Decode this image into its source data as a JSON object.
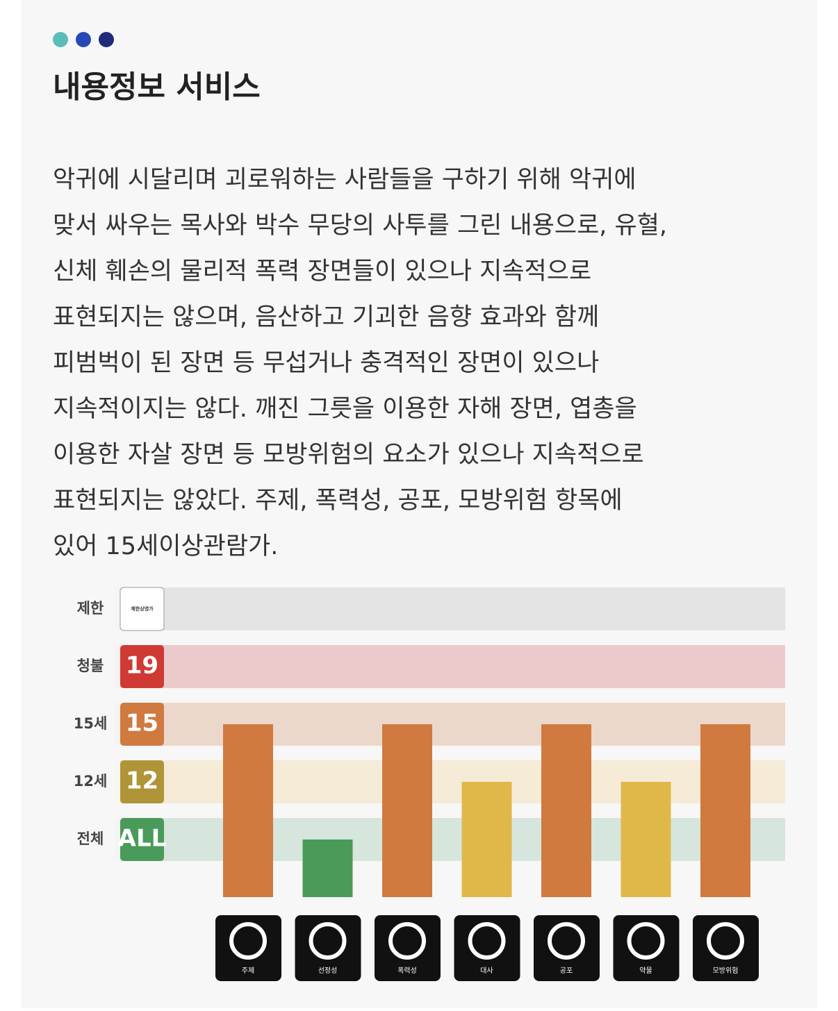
{
  "header": {
    "title": "내용정보 서비스"
  },
  "body": {
    "lines": [
      "악귀에 시달리며 괴로워하는 사람들을 구하기 위해 악귀에",
      "맞서 싸우는 목사와 박수 무당의 사투를 그린 내용으로, 유혈,",
      "신체 훼손의 물리적 폭력 장면들이 있으나 지속적으로",
      "표현되지는 않으며, 음산하고 기괴한 음향 효과와 함께",
      "피범벅이 된 장면 등 무섭거나 충격적인 장면이 있으나",
      "지속적이지는 않다. 깨진 그릇을 이용한 자해 장면, 엽총을",
      "이용한 자살 장면 등 모방위험의 요소가 있으나 지속적으로",
      "표현되지는 않았다. 주제, 폭력성, 공포, 모방위험 항목에",
      "있어 15세이상관람가."
    ]
  },
  "chart_data": {
    "type": "bar",
    "categories": [
      "주제",
      "선정성",
      "폭력성",
      "대사",
      "공포",
      "약물",
      "모방위험"
    ],
    "values": [
      3,
      1,
      3,
      2,
      3,
      2,
      3
    ],
    "colors": [
      "#d07a40",
      "#4a9a5a",
      "#d07a40",
      "#e0b84a",
      "#d07a40",
      "#e0b84a",
      "#d07a40"
    ],
    "ylim": [
      0,
      5
    ],
    "yticks": [
      {
        "value": 1,
        "label": "전체"
      },
      {
        "value": 2,
        "label": "12세"
      },
      {
        "value": 3,
        "label": "15세"
      },
      {
        "value": 4,
        "label": "청불"
      },
      {
        "value": 5,
        "label": "제한"
      }
    ],
    "badges": [
      "ALL",
      "12",
      "15",
      "19",
      "제한상영가"
    ],
    "badge_colors": [
      "#4a9a5a",
      "#b09438",
      "#d07a40",
      "#d03a34",
      "#ffffff"
    ],
    "band_colors": [
      "#d6e6dc",
      "#f5ebd6",
      "#ecd8cb",
      "#eccacc",
      "#e4e4e4"
    ]
  }
}
